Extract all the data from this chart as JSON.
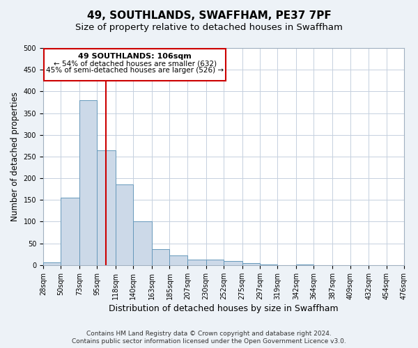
{
  "title": "49, SOUTHLANDS, SWAFFHAM, PE37 7PF",
  "subtitle": "Size of property relative to detached houses in Swaffham",
  "bar_values": [
    6,
    155,
    380,
    265,
    185,
    100,
    36,
    22,
    12,
    12,
    10,
    4,
    2,
    0,
    2,
    0,
    0,
    0,
    0,
    0
  ],
  "bin_edges": [
    28,
    50,
    73,
    95,
    118,
    140,
    163,
    185,
    207,
    230,
    252,
    275,
    297,
    319,
    342,
    364,
    387,
    409,
    432,
    454,
    476
  ],
  "bin_labels": [
    "28sqm",
    "50sqm",
    "73sqm",
    "95sqm",
    "118sqm",
    "140sqm",
    "163sqm",
    "185sqm",
    "207sqm",
    "230sqm",
    "252sqm",
    "275sqm",
    "297sqm",
    "319sqm",
    "342sqm",
    "364sqm",
    "387sqm",
    "409sqm",
    "432sqm",
    "454sqm",
    "476sqm"
  ],
  "xlabel": "Distribution of detached houses by size in Swaffham",
  "ylabel": "Number of detached properties",
  "ylim": [
    0,
    500
  ],
  "yticks": [
    0,
    50,
    100,
    150,
    200,
    250,
    300,
    350,
    400,
    450,
    500
  ],
  "bar_color": "#ccd9e8",
  "bar_edge_color": "#6699bb",
  "property_line_x": 106,
  "annotation_title": "49 SOUTHLANDS: 106sqm",
  "annotation_line1": "← 54% of detached houses are smaller (632)",
  "annotation_line2": "45% of semi-detached houses are larger (526) →",
  "annotation_box_color": "#ffffff",
  "annotation_box_edge": "#cc0000",
  "vline_color": "#cc0000",
  "footer1": "Contains HM Land Registry data © Crown copyright and database right 2024.",
  "footer2": "Contains public sector information licensed under the Open Government Licence v3.0.",
  "background_color": "#edf2f7",
  "plot_background": "#ffffff",
  "grid_color": "#c5d0de",
  "title_fontsize": 11,
  "subtitle_fontsize": 9.5,
  "xlabel_fontsize": 9,
  "ylabel_fontsize": 8.5,
  "tick_fontsize": 7,
  "footer_fontsize": 6.5,
  "annot_title_fontsize": 8,
  "annot_text_fontsize": 7.5
}
